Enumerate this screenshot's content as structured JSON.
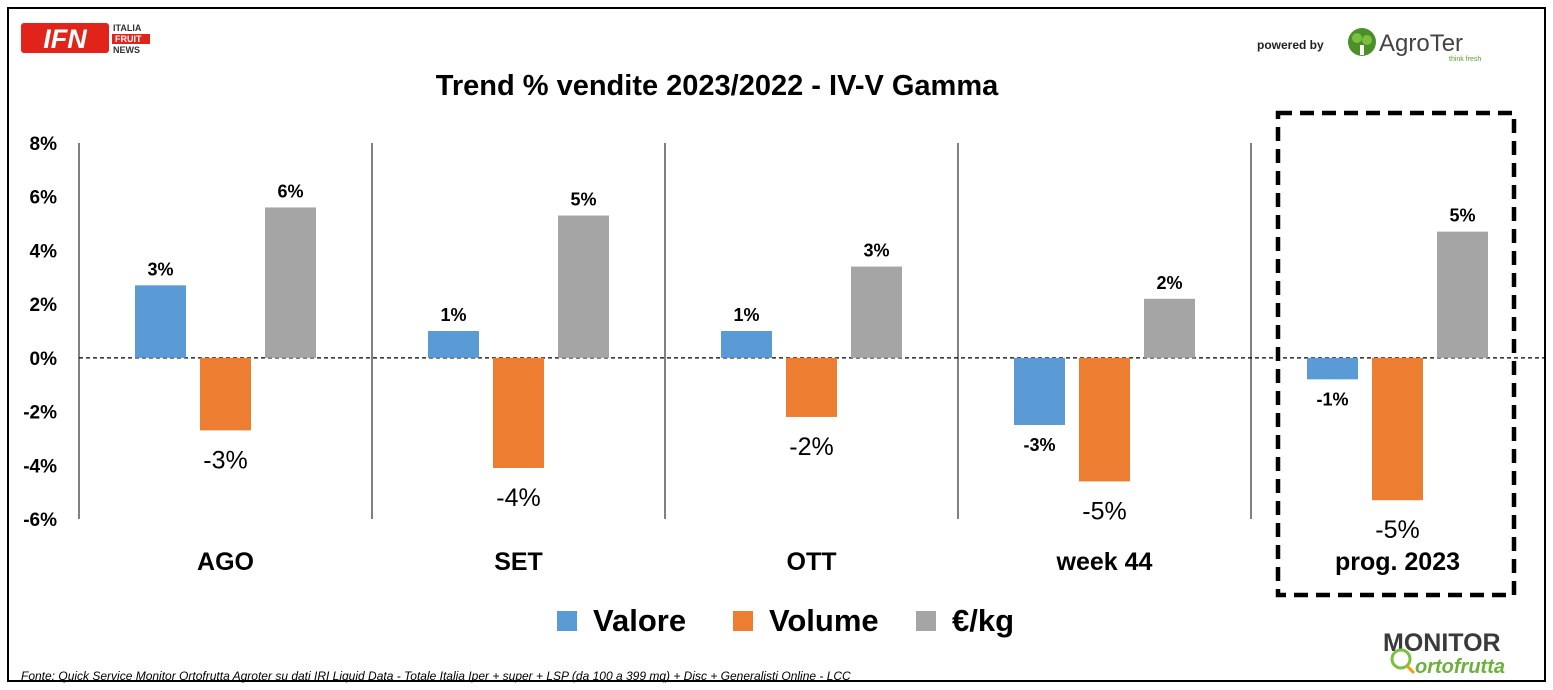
{
  "branding": {
    "ifn_logo": "IFN",
    "ifn_sub": [
      "ITALIA",
      "FRUIT",
      "NEWS"
    ],
    "powered_by": "powered by",
    "agroter": "AgroTer",
    "agroter_tagline": "think fresh",
    "monitor": "MONITOR",
    "ortofrutta": "ortofrutta"
  },
  "source_note": "Fonte: Quick Service Monitor Ortofrutta Agroter su dati IRI Liquid Data - Totale Italia Iper + super + LSP (da 100 a 399 mq) + Disc + Generalisti Online - LCC",
  "colors": {
    "valore": "#5b9bd5",
    "volume": "#ed7d31",
    "prezzo": "#a5a5a5"
  },
  "chart_data": {
    "type": "bar",
    "title": "Trend % vendite 2023/2022 - IV-V Gamma",
    "categories": [
      "AGO",
      "SET",
      "OTT",
      "week 44",
      "prog. 2023"
    ],
    "series": [
      {
        "name": "Valore",
        "values": [
          2.7,
          1.0,
          1.0,
          -2.5,
          -0.8
        ],
        "labels": [
          "3%",
          "1%",
          "1%",
          "-3%",
          "-1%"
        ]
      },
      {
        "name": "Volume",
        "values": [
          -2.7,
          -4.1,
          -2.2,
          -4.6,
          -5.3
        ],
        "labels": [
          "-3%",
          "-4%",
          "-2%",
          "-5%",
          "-5%"
        ]
      },
      {
        "name": "€/kg",
        "values": [
          5.6,
          5.3,
          3.4,
          2.2,
          4.7
        ],
        "labels": [
          "6%",
          "5%",
          "3%",
          "2%",
          "5%"
        ]
      }
    ],
    "ylim": [
      -6,
      8
    ],
    "yticks": [
      "8%",
      "6%",
      "4%",
      "2%",
      "0%",
      "-2%",
      "-4%",
      "-6%"
    ],
    "ytick_values": [
      8,
      6,
      4,
      2,
      0,
      -2,
      -4,
      -6
    ],
    "xlabel": "",
    "ylabel": "",
    "legend": "bottom",
    "highlight_category": "prog. 2023"
  }
}
